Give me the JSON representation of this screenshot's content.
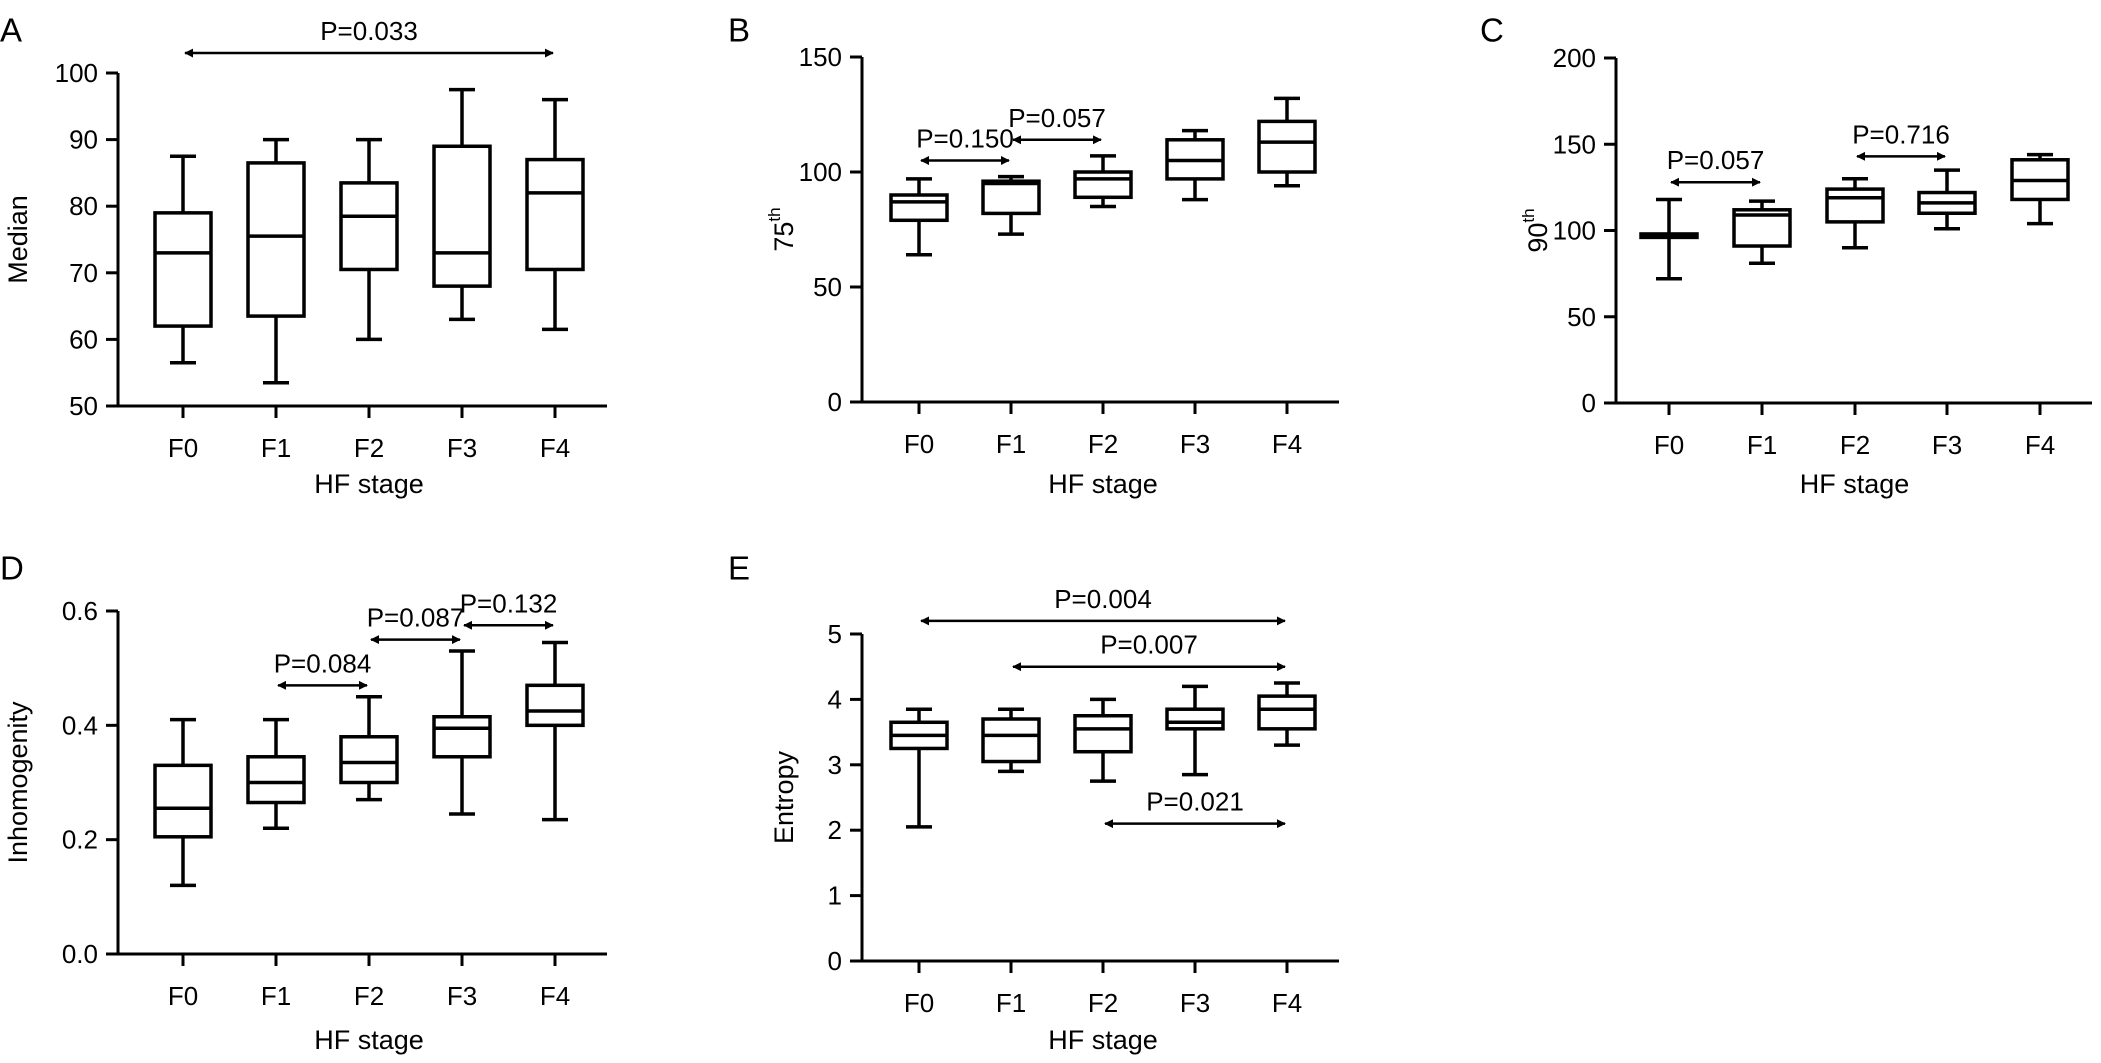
{
  "chart_data": [
    {
      "panel": "A",
      "type": "box",
      "categories": [
        "F0",
        "F1",
        "F2",
        "F3",
        "F4"
      ],
      "boxes": [
        {
          "min": 56.5,
          "q1": 62.0,
          "median": 73.0,
          "q3": 79.0,
          "max": 87.5
        },
        {
          "min": 53.5,
          "q1": 63.5,
          "median": 75.5,
          "q3": 86.5,
          "max": 90.0
        },
        {
          "min": 60.0,
          "q1": 70.5,
          "median": 78.5,
          "q3": 83.5,
          "max": 90.0
        },
        {
          "min": 63.0,
          "q1": 68.0,
          "median": 73.0,
          "q3": 89.0,
          "max": 97.5
        },
        {
          "min": 61.5,
          "q1": 70.5,
          "median": 82.0,
          "q3": 87.0,
          "max": 96.0
        }
      ],
      "xlabel": "HF stage",
      "ylabel": "Median",
      "ylim": [
        50,
        100
      ],
      "yticks": [
        "50",
        "60",
        "70",
        "80",
        "90",
        "100"
      ],
      "comparisons": [
        {
          "from": "F0",
          "to": "F4",
          "label": "P=0.033",
          "y": 103.0
        }
      ]
    },
    {
      "panel": "B",
      "type": "box",
      "categories": [
        "F0",
        "F1",
        "F2",
        "F3",
        "F4"
      ],
      "boxes": [
        {
          "min": 64,
          "q1": 79,
          "median": 87,
          "q3": 90,
          "max": 97
        },
        {
          "min": 73,
          "q1": 82,
          "median": 95,
          "q3": 96,
          "max": 98
        },
        {
          "min": 85,
          "q1": 89,
          "median": 97,
          "q3": 100,
          "max": 107
        },
        {
          "min": 88,
          "q1": 97,
          "median": 105,
          "q3": 114,
          "max": 118
        },
        {
          "min": 94,
          "q1": 100,
          "median": 113,
          "q3": 122,
          "max": 132
        }
      ],
      "xlabel": "HF stage",
      "ylabel": "75",
      "ylabel_superscript": "th",
      "ylim": [
        0,
        150
      ],
      "yticks": [
        "0",
        "50",
        "100",
        "150"
      ],
      "comparisons": [
        {
          "from": "F0",
          "to": "F1",
          "label": "P=0.150",
          "y": 105
        },
        {
          "from": "F1",
          "to": "F2",
          "label": "P=0.057",
          "y": 114
        }
      ]
    },
    {
      "panel": "C",
      "type": "box",
      "categories": [
        "F0",
        "F1",
        "F2",
        "F3",
        "F4"
      ],
      "boxes": [
        {
          "min": 72,
          "q1": 96,
          "median": 97,
          "q3": 98,
          "max": 118
        },
        {
          "min": 81,
          "q1": 91,
          "median": 109,
          "q3": 112,
          "max": 117
        },
        {
          "min": 90,
          "q1": 105,
          "median": 119,
          "q3": 124,
          "max": 130
        },
        {
          "min": 101,
          "q1": 110,
          "median": 116,
          "q3": 122,
          "max": 135
        },
        {
          "min": 104,
          "q1": 118,
          "median": 129,
          "q3": 141,
          "max": 144
        }
      ],
      "xlabel": "HF stage",
      "ylabel": "90",
      "ylabel_superscript": "th",
      "ylim": [
        0,
        200
      ],
      "yticks": [
        "0",
        "50",
        "100",
        "150",
        "200"
      ],
      "comparisons": [
        {
          "from": "F0",
          "to": "F1",
          "label": "P=0.057",
          "y": 128
        },
        {
          "from": "F2",
          "to": "F3",
          "label": "P=0.716",
          "y": 143
        }
      ]
    },
    {
      "panel": "D",
      "type": "box",
      "categories": [
        "F0",
        "F1",
        "F2",
        "F3",
        "F4"
      ],
      "boxes": [
        {
          "min": 0.12,
          "q1": 0.205,
          "median": 0.255,
          "q3": 0.33,
          "max": 0.41
        },
        {
          "min": 0.22,
          "q1": 0.265,
          "median": 0.3,
          "q3": 0.345,
          "max": 0.41
        },
        {
          "min": 0.27,
          "q1": 0.3,
          "median": 0.335,
          "q3": 0.38,
          "max": 0.45
        },
        {
          "min": 0.245,
          "q1": 0.345,
          "median": 0.395,
          "q3": 0.415,
          "max": 0.53
        },
        {
          "min": 0.235,
          "q1": 0.4,
          "median": 0.425,
          "q3": 0.47,
          "max": 0.545
        }
      ],
      "xlabel": "HF stage",
      "ylabel": "Inhomogenity",
      "ylim": [
        0.0,
        0.6
      ],
      "yticks": [
        "0.0",
        "0.2",
        "0.4",
        "0.6"
      ],
      "comparisons": [
        {
          "from": "F1",
          "to": "F2",
          "label": "P=0.084",
          "y": 0.47
        },
        {
          "from": "F2",
          "to": "F3",
          "label": "P=0.087",
          "y": 0.55
        },
        {
          "from": "F3",
          "to": "F4",
          "label": "P=0.132",
          "y": 0.575
        }
      ]
    },
    {
      "panel": "E",
      "type": "box",
      "categories": [
        "F0",
        "F1",
        "F2",
        "F3",
        "F4"
      ],
      "boxes": [
        {
          "min": 2.05,
          "q1": 3.25,
          "median": 3.45,
          "q3": 3.65,
          "max": 3.85
        },
        {
          "min": 2.9,
          "q1": 3.05,
          "median": 3.45,
          "q3": 3.7,
          "max": 3.85
        },
        {
          "min": 2.75,
          "q1": 3.2,
          "median": 3.55,
          "q3": 3.75,
          "max": 4.0
        },
        {
          "min": 2.85,
          "q1": 3.55,
          "median": 3.65,
          "q3": 3.85,
          "max": 4.2
        },
        {
          "min": 3.3,
          "q1": 3.55,
          "median": 3.85,
          "q3": 4.05,
          "max": 4.25
        }
      ],
      "xlabel": "HF stage",
      "ylabel": "Entropy",
      "ylim": [
        0,
        5
      ],
      "yticks": [
        "0",
        "1",
        "2",
        "3",
        "4",
        "5"
      ],
      "comparisons": [
        {
          "from": "F0",
          "to": "F4",
          "label": "P=0.004",
          "y": 5.2
        },
        {
          "from": "F1",
          "to": "F4",
          "label": "P=0.007",
          "y": 4.5
        },
        {
          "from": "F2",
          "to": "F4",
          "label": "P=0.021",
          "y": 2.1
        }
      ]
    }
  ]
}
